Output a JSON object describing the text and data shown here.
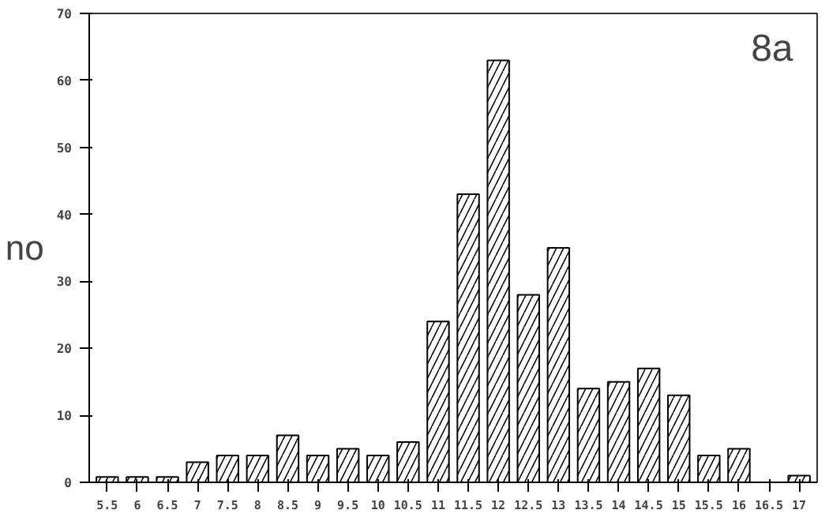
{
  "chart_data": {
    "type": "bar",
    "categories": [
      "5.5",
      "6",
      "6.5",
      "7",
      "7.5",
      "8",
      "8.5",
      "9",
      "9.5",
      "10",
      "10.5",
      "11",
      "11.5",
      "12",
      "12.5",
      "13",
      "13.5",
      "14",
      "14.5",
      "15",
      "15.5",
      "16",
      "16.5",
      "17"
    ],
    "values": [
      0.8,
      0.8,
      0.8,
      3,
      4,
      4,
      7,
      4,
      5,
      4,
      6,
      24,
      43,
      63,
      28,
      35,
      14,
      15,
      17,
      13,
      4,
      5,
      0,
      1
    ],
    "color": "#000000",
    "ylabel": "no",
    "annotations": [
      "8a"
    ],
    "ylim": [
      0,
      70
    ],
    "yticks": [
      0,
      10,
      20,
      30,
      40,
      50,
      60,
      70
    ],
    "grid": false
  }
}
